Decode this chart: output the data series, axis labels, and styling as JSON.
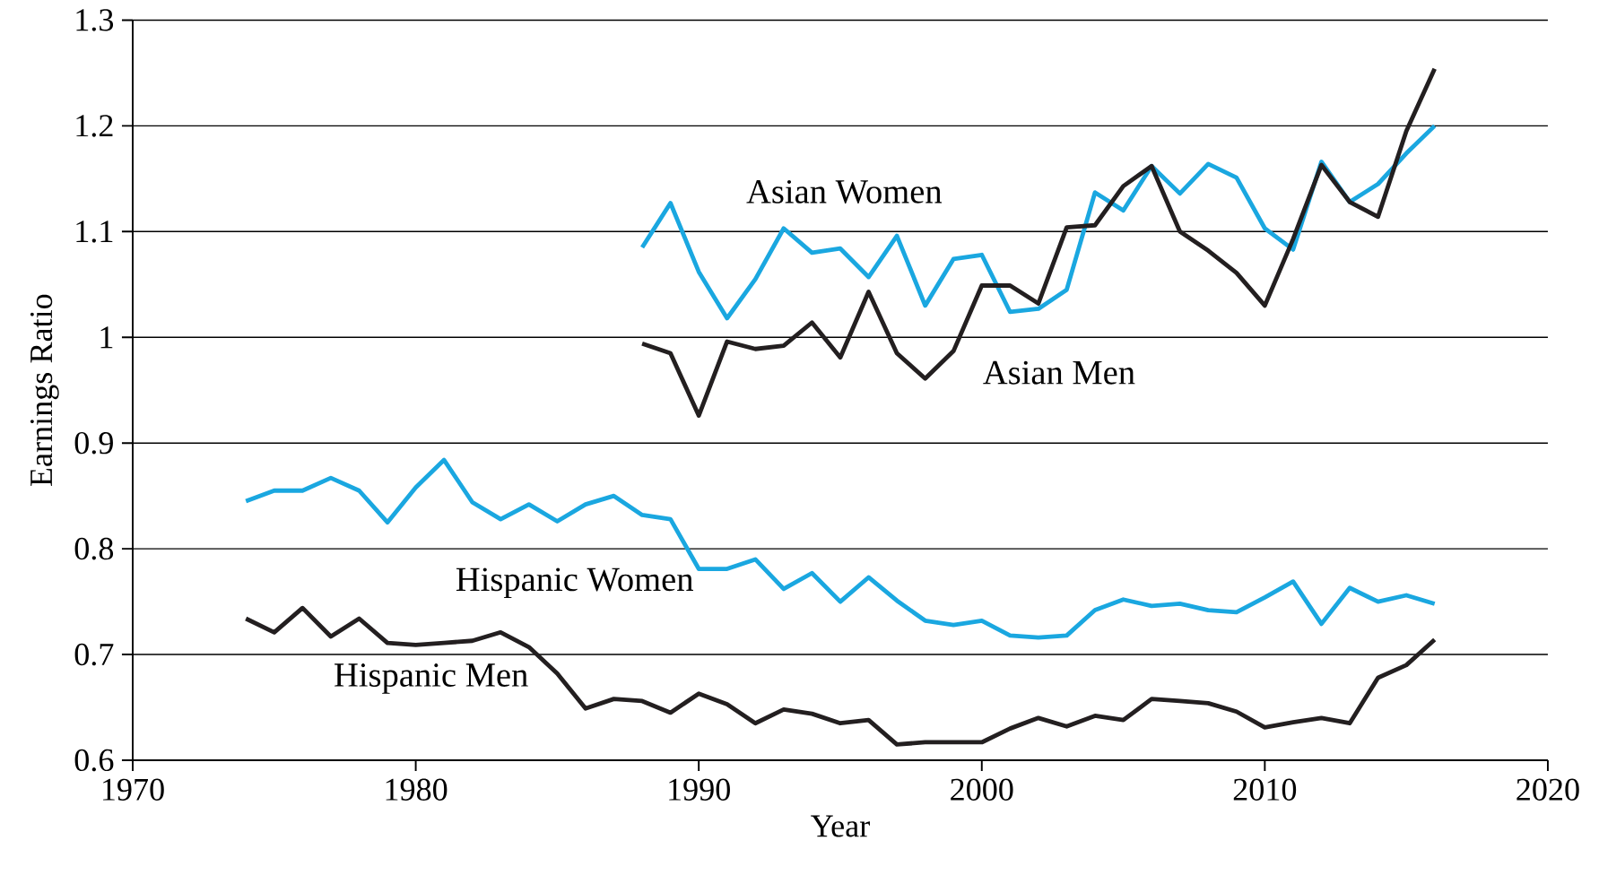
{
  "chart_data": {
    "type": "line",
    "xlabel": "Year",
    "ylabel": "Earnings Ratio",
    "xlim": [
      1970,
      2020
    ],
    "xticks": [
      1970,
      1980,
      1990,
      2000,
      2010,
      2020
    ],
    "ylim": [
      0.6,
      1.3
    ],
    "yticks": [
      0.6,
      0.7,
      0.8,
      0.9,
      1,
      1.1,
      1.2,
      1.3
    ],
    "grid": "y",
    "marker": "none",
    "line_style": "solid",
    "series": [
      {
        "name": "Asian Women",
        "color": "#1aa7e0",
        "x": [
          1988,
          1989,
          1990,
          1991,
          1992,
          1993,
          1994,
          1995,
          1996,
          1997,
          1998,
          1999,
          2000,
          2001,
          2002,
          2003,
          2004,
          2005,
          2006,
          2007,
          2008,
          2009,
          2010,
          2011,
          2012,
          2013,
          2014,
          2015,
          2016
        ],
        "values": [
          1.085,
          1.127,
          1.062,
          1.018,
          1.055,
          1.103,
          1.08,
          1.084,
          1.057,
          1.096,
          1.03,
          1.074,
          1.078,
          1.024,
          1.027,
          1.045,
          1.137,
          1.12,
          1.162,
          1.136,
          1.164,
          1.151,
          1.103,
          1.083,
          1.166,
          1.128,
          1.145,
          1.174,
          1.2
        ]
      },
      {
        "name": "Asian Men",
        "color": "#231f20",
        "x": [
          1988,
          1989,
          1990,
          1991,
          1992,
          1993,
          1994,
          1995,
          1996,
          1997,
          1998,
          1999,
          2000,
          2001,
          2002,
          2003,
          2004,
          2005,
          2006,
          2007,
          2008,
          2009,
          2010,
          2011,
          2012,
          2013,
          2014,
          2015,
          2016
        ],
        "values": [
          0.994,
          0.985,
          0.926,
          0.996,
          0.989,
          0.992,
          1.014,
          0.981,
          1.043,
          0.985,
          0.961,
          0.987,
          1.049,
          1.049,
          1.032,
          1.104,
          1.106,
          1.143,
          1.162,
          1.1,
          1.082,
          1.061,
          1.03,
          1.093,
          1.163,
          1.128,
          1.114,
          1.195,
          1.254
        ]
      },
      {
        "name": "Hispanic Women",
        "color": "#1aa7e0",
        "x": [
          1974,
          1975,
          1976,
          1977,
          1978,
          1979,
          1980,
          1981,
          1982,
          1983,
          1984,
          1985,
          1986,
          1987,
          1988,
          1989,
          1990,
          1991,
          1992,
          1993,
          1994,
          1995,
          1996,
          1997,
          1998,
          1999,
          2000,
          2001,
          2002,
          2003,
          2004,
          2005,
          2006,
          2007,
          2008,
          2009,
          2010,
          2011,
          2012,
          2013,
          2014,
          2015,
          2016
        ],
        "values": [
          0.845,
          0.855,
          0.855,
          0.867,
          0.855,
          0.825,
          0.858,
          0.884,
          0.844,
          0.828,
          0.842,
          0.826,
          0.842,
          0.85,
          0.832,
          0.828,
          0.781,
          0.781,
          0.79,
          0.762,
          0.777,
          0.75,
          0.773,
          0.751,
          0.732,
          0.728,
          0.732,
          0.718,
          0.716,
          0.718,
          0.742,
          0.752,
          0.746,
          0.748,
          0.742,
          0.74,
          0.754,
          0.769,
          0.729,
          0.763,
          0.75,
          0.756,
          0.748
        ]
      },
      {
        "name": "Hispanic Men",
        "color": "#231f20",
        "x": [
          1974,
          1975,
          1976,
          1977,
          1978,
          1979,
          1980,
          1981,
          1982,
          1983,
          1984,
          1985,
          1986,
          1987,
          1988,
          1989,
          1990,
          1991,
          1992,
          1993,
          1994,
          1995,
          1996,
          1997,
          1998,
          1999,
          2000,
          2001,
          2002,
          2003,
          2004,
          2005,
          2006,
          2007,
          2008,
          2009,
          2010,
          2011,
          2012,
          2013,
          2014,
          2015,
          2016
        ],
        "values": [
          0.734,
          0.721,
          0.744,
          0.717,
          0.734,
          0.711,
          0.709,
          0.711,
          0.713,
          0.721,
          0.707,
          0.682,
          0.649,
          0.658,
          0.656,
          0.645,
          0.663,
          0.653,
          0.635,
          0.648,
          0.644,
          0.635,
          0.638,
          0.615,
          0.617,
          0.617,
          0.617,
          0.63,
          0.64,
          0.632,
          0.642,
          0.638,
          0.658,
          0.656,
          0.654,
          0.646,
          0.631,
          0.636,
          0.64,
          0.635,
          0.678,
          0.69,
          0.714
        ]
      }
    ]
  }
}
